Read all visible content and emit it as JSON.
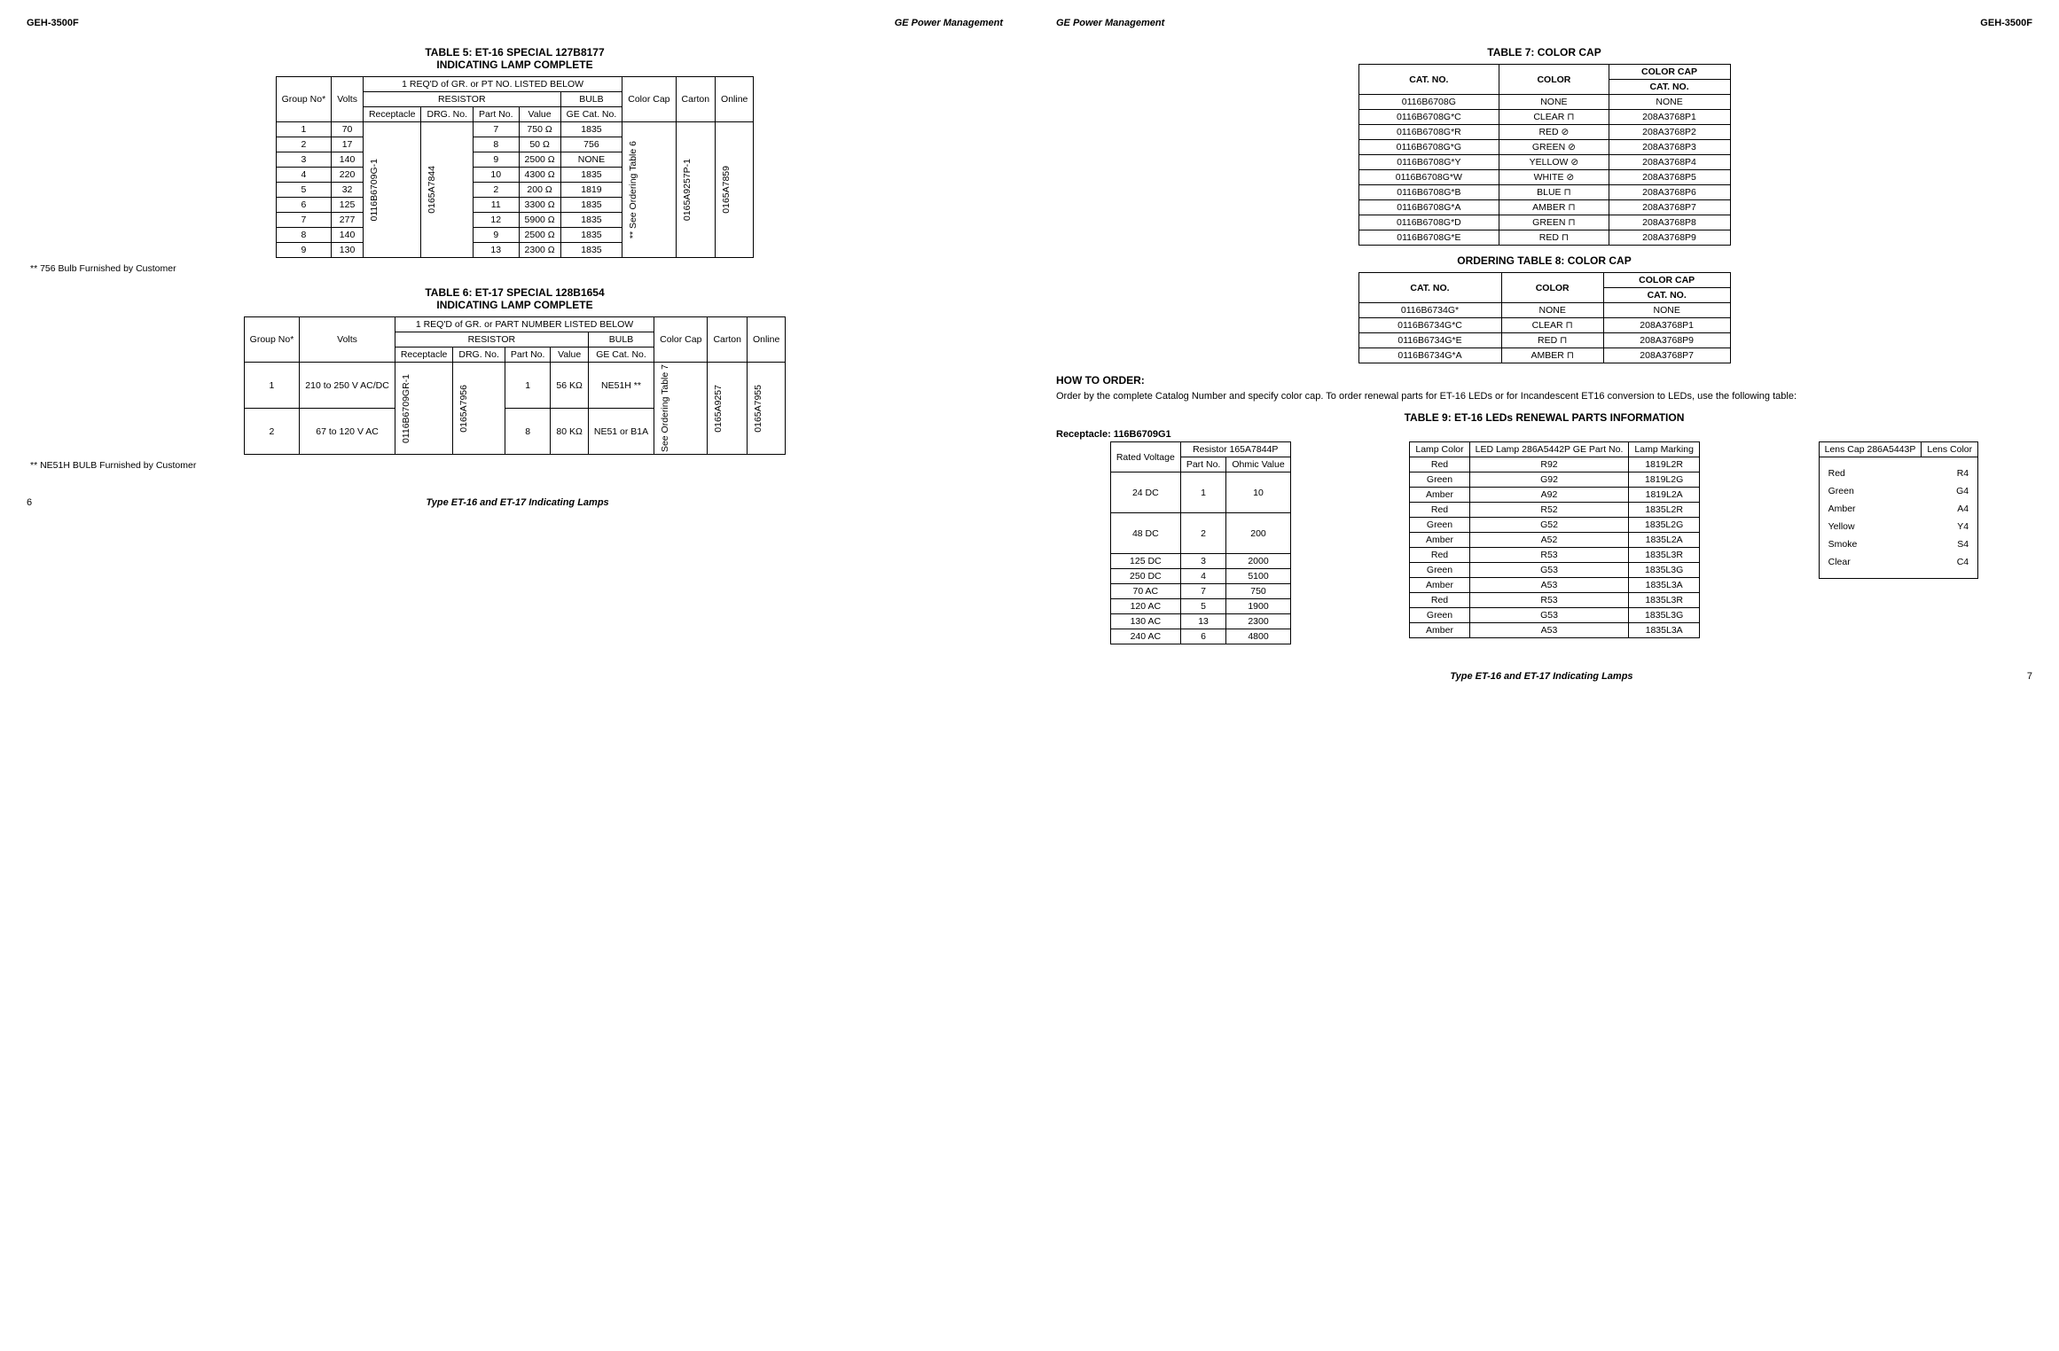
{
  "doc_id": "GEH-3500F",
  "company": "GE Power Management",
  "footer_title": "Type ET-16 and ET-17 Indicating Lamps",
  "page_left": "6",
  "page_right": "7",
  "table5": {
    "title1": "TABLE 5: ET-16 SPECIAL 127B8177",
    "title2": "INDICATING LAMP COMPLETE",
    "h_group": "Group No*",
    "h_volts": "Volts",
    "h_req": "1 REQ'D of GR. or PT NO. LISTED BELOW",
    "h_resistor": "RESISTOR",
    "h_bulb": "BULB",
    "h_recept": "Receptacle",
    "h_drg": "DRG. No.",
    "h_partno": "Part No.",
    "h_value": "Value",
    "h_gecat": "GE Cat. No.",
    "h_colorcap": "Color Cap",
    "h_carton": "Carton",
    "h_online": "Online",
    "receptacle": "0116B6709G-1",
    "drg": "0165A7844",
    "colorcap": "** See Ordering Table 6",
    "carton": "0165A9257P-1",
    "online": "0165A7859",
    "rows": [
      {
        "g": "1",
        "v": "70",
        "p": "7",
        "val": "750 Ω",
        "bulb": "1835"
      },
      {
        "g": "2",
        "v": "17",
        "p": "8",
        "val": "50 Ω",
        "bulb": "756"
      },
      {
        "g": "3",
        "v": "140",
        "p": "9",
        "val": "2500 Ω",
        "bulb": "NONE"
      },
      {
        "g": "4",
        "v": "220",
        "p": "10",
        "val": "4300 Ω",
        "bulb": "1835"
      },
      {
        "g": "5",
        "v": "32",
        "p": "2",
        "val": "200 Ω",
        "bulb": "1819"
      },
      {
        "g": "6",
        "v": "125",
        "p": "11",
        "val": "3300 Ω",
        "bulb": "1835"
      },
      {
        "g": "7",
        "v": "277",
        "p": "12",
        "val": "5900 Ω",
        "bulb": "1835"
      },
      {
        "g": "8",
        "v": "140",
        "p": "9",
        "val": "2500 Ω",
        "bulb": "1835"
      },
      {
        "g": "9",
        "v": "130",
        "p": "13",
        "val": "2300 Ω",
        "bulb": "1835"
      }
    ],
    "note": "** 756 Bulb Furnished by Customer"
  },
  "table6": {
    "title1": "TABLE 6: ET-17 SPECIAL 128B1654",
    "title2": "INDICATING LAMP COMPLETE",
    "h_group": "Group No*",
    "h_volts": "Volts",
    "h_req": "1 REQ'D of GR. or PART NUMBER LISTED BELOW",
    "h_resistor": "RESISTOR",
    "h_bulb": "BULB",
    "h_recept": "Receptacle",
    "h_drg": "DRG. No.",
    "h_partno": "Part No.",
    "h_value": "Value",
    "h_gecat": "GE Cat. No.",
    "h_colorcap": "Color Cap",
    "h_carton": "Carton",
    "h_online": "Online",
    "receptacle": "0116B6709GR-1",
    "drg": "0165A7956",
    "colorcap": "See Ordering Table 7",
    "carton": "0165A9257",
    "online": "0165A7955",
    "rows": [
      {
        "g": "1",
        "v": "210 to 250 V AC/DC",
        "p": "1",
        "val": "56 KΩ",
        "bulb": "NE51H **"
      },
      {
        "g": "2",
        "v": "67 to 120 V AC",
        "p": "8",
        "val": "80 KΩ",
        "bulb": "NE51 or B1A"
      }
    ],
    "note": "** NE51H BULB Furnished by Customer"
  },
  "table7": {
    "title": "TABLE 7: COLOR CAP",
    "h_span": "COLOR CAP",
    "h_catno": "CAT. NO.",
    "h_color": "COLOR",
    "h_catno2": "CAT. NO.",
    "rows": [
      {
        "c": "0116B6708G",
        "col": "NONE",
        "cat": "NONE"
      },
      {
        "c": "0116B6708G*C",
        "col": "CLEAR ⊓",
        "cat": "208A3768P1"
      },
      {
        "c": "0116B6708G*R",
        "col": "RED ⊘",
        "cat": "208A3768P2"
      },
      {
        "c": "0116B6708G*G",
        "col": "GREEN ⊘",
        "cat": "208A3768P3"
      },
      {
        "c": "0116B6708G*Y",
        "col": "YELLOW ⊘",
        "cat": "208A3768P4"
      },
      {
        "c": "0116B6708G*W",
        "col": "WHITE ⊘",
        "cat": "208A3768P5"
      },
      {
        "c": "0116B6708G*B",
        "col": "BLUE ⊓",
        "cat": "208A3768P6"
      },
      {
        "c": "0116B6708G*A",
        "col": "AMBER ⊓",
        "cat": "208A3768P7"
      },
      {
        "c": "0116B6708G*D",
        "col": "GREEN ⊓",
        "cat": "208A3768P8"
      },
      {
        "c": "0116B6708G*E",
        "col": "RED ⊓",
        "cat": "208A3768P9"
      }
    ]
  },
  "table8": {
    "title": "ORDERING TABLE 8: COLOR CAP",
    "h_span": "COLOR CAP",
    "h_catno": "CAT. NO.",
    "h_color": "COLOR",
    "h_catno2": "CAT. NO.",
    "rows": [
      {
        "c": "0116B6734G*",
        "col": "NONE",
        "cat": "NONE"
      },
      {
        "c": "0116B6734G*C",
        "col": "CLEAR ⊓",
        "cat": "208A3768P1"
      },
      {
        "c": "0116B6734G*E",
        "col": "RED ⊓",
        "cat": "208A3768P9"
      },
      {
        "c": "0116B6734G*A",
        "col": "AMBER ⊓",
        "cat": "208A3768P7"
      }
    ]
  },
  "how_to_order": {
    "head": "HOW TO ORDER:",
    "body": "Order by the complete Catalog Number and specify color cap. To order renewal parts for ET-16 LEDs or for Incandescent ET16 conversion to LEDs, use the following table:"
  },
  "table9": {
    "title": "TABLE 9: ET-16 LEDs RENEWAL PARTS INFORMATION",
    "receptacle_label": "Receptacle: 116B6709G1",
    "t1": {
      "h_rated": "Rated Voltage",
      "h_res": "Resistor 165A7844P",
      "h_part": "Part No.",
      "h_ohm": "Ohmic Value",
      "rows": [
        {
          "v": "24 DC",
          "p": "1",
          "o": "10"
        },
        {
          "v": "48 DC",
          "p": "2",
          "o": "200"
        },
        {
          "v": "125 DC",
          "p": "3",
          "o": "2000"
        },
        {
          "v": "250 DC",
          "p": "4",
          "o": "5100"
        },
        {
          "v": "70 AC",
          "p": "7",
          "o": "750"
        },
        {
          "v": "120 AC",
          "p": "5",
          "o": "1900"
        },
        {
          "v": "130 AC",
          "p": "13",
          "o": "2300"
        },
        {
          "v": "240 AC",
          "p": "6",
          "o": "4800"
        }
      ]
    },
    "t2": {
      "h_lampcolor": "Lamp Color",
      "h_ledlamp": "LED Lamp 286A5442P GE Part No.",
      "h_lampmark": "Lamp Marking",
      "groups": [
        [
          {
            "c": "Red",
            "p": "R92",
            "m": "1819L2R"
          },
          {
            "c": "Green",
            "p": "G92",
            "m": "1819L2G"
          },
          {
            "c": "Amber",
            "p": "A92",
            "m": "1819L2A"
          }
        ],
        [
          {
            "c": "Red",
            "p": "R52",
            "m": "1835L2R"
          },
          {
            "c": "Green",
            "p": "G52",
            "m": "1835L2G"
          },
          {
            "c": "Amber",
            "p": "A52",
            "m": "1835L2A"
          }
        ],
        [
          {
            "c": "Red",
            "p": "R53",
            "m": "1835L3R"
          },
          {
            "c": "Green",
            "p": "G53",
            "m": "1835L3G"
          },
          {
            "c": "Amber",
            "p": "A53",
            "m": "1835L3A"
          }
        ],
        [
          {
            "c": "Red",
            "p": "R53",
            "m": "1835L3R"
          },
          {
            "c": "Green",
            "p": "G53",
            "m": "1835L3G"
          },
          {
            "c": "Amber",
            "p": "A53",
            "m": "1835L3A"
          }
        ]
      ]
    },
    "t3": {
      "h_lenscap": "Lens Cap 286A5443P",
      "h_lenscolor": "Lens Color",
      "rows": [
        {
          "c": "Red",
          "p": "R4"
        },
        {
          "c": "Green",
          "p": "G4"
        },
        {
          "c": "Amber",
          "p": "A4"
        },
        {
          "c": "Yellow",
          "p": "Y4"
        },
        {
          "c": "Smoke",
          "p": "S4"
        },
        {
          "c": "Clear",
          "p": "C4"
        }
      ]
    }
  }
}
